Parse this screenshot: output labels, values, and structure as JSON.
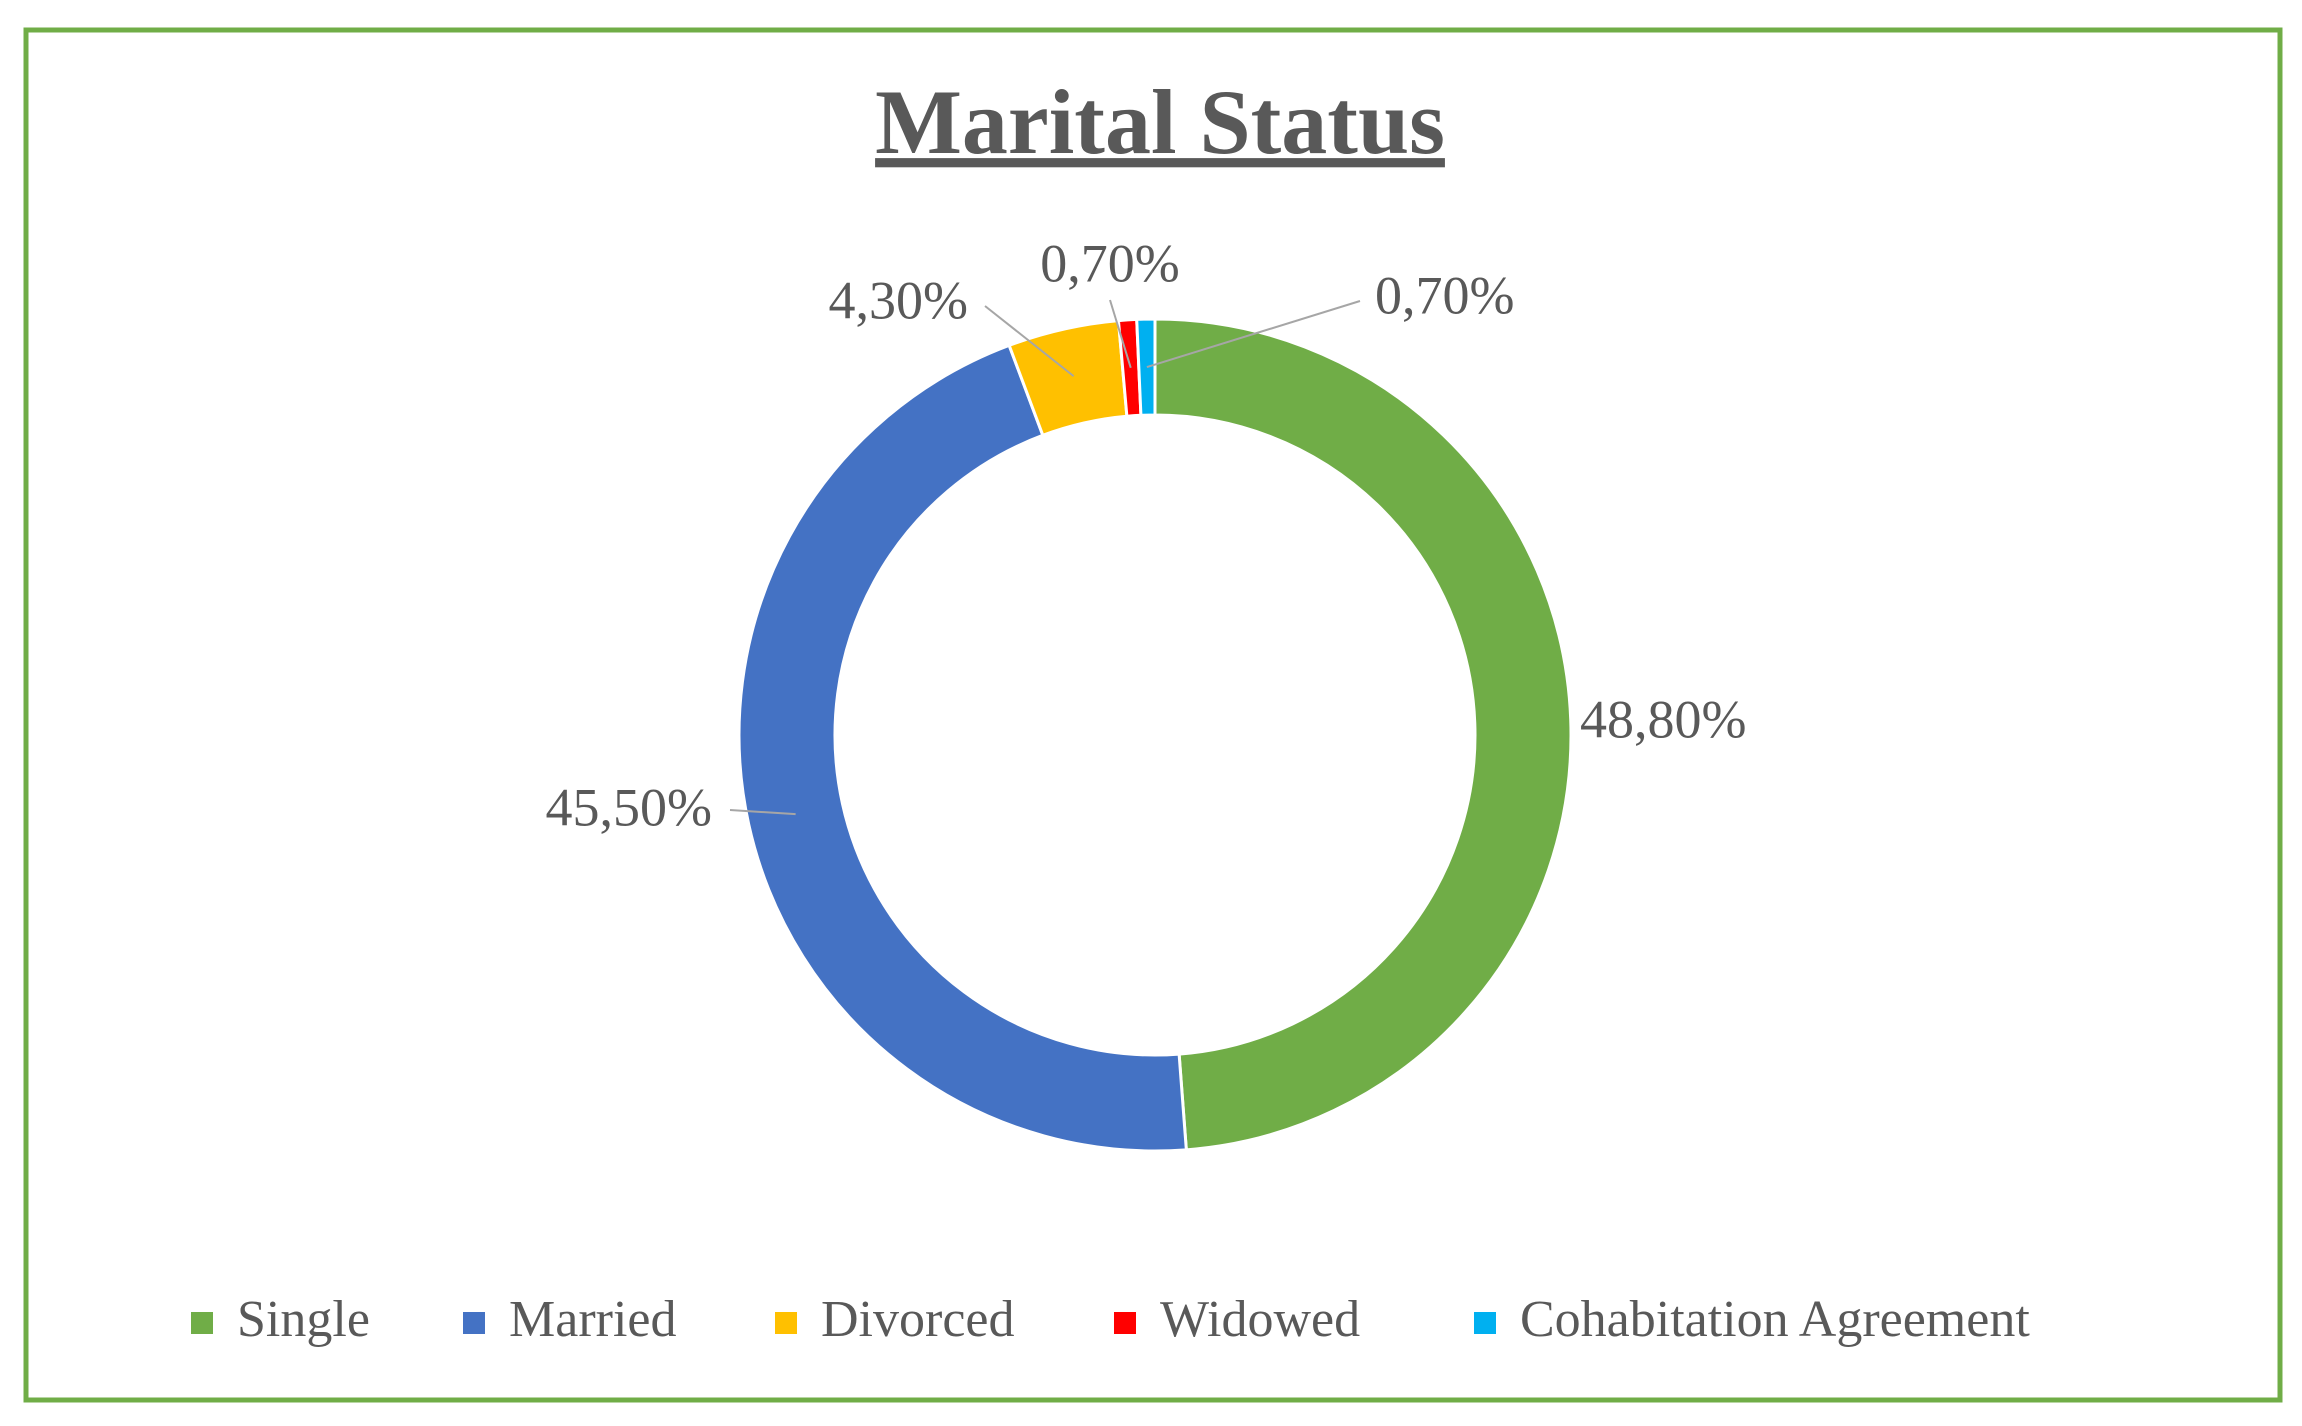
{
  "chart_data": {
    "type": "donut",
    "title": "Marital Status",
    "categories": [
      "Single",
      "Married",
      "Divorced",
      "Widowed",
      "Cohabitation Agreement"
    ],
    "values": [
      48.8,
      45.5,
      4.3,
      0.7,
      0.7
    ],
    "value_labels": [
      "48,80%",
      "45,50%",
      "4,30%",
      "0,70%",
      "0,70%"
    ],
    "colors": [
      "#70ad47",
      "#4472c4",
      "#ffc000",
      "#ff0000",
      "#00b0f0"
    ],
    "legend": "bottom"
  }
}
